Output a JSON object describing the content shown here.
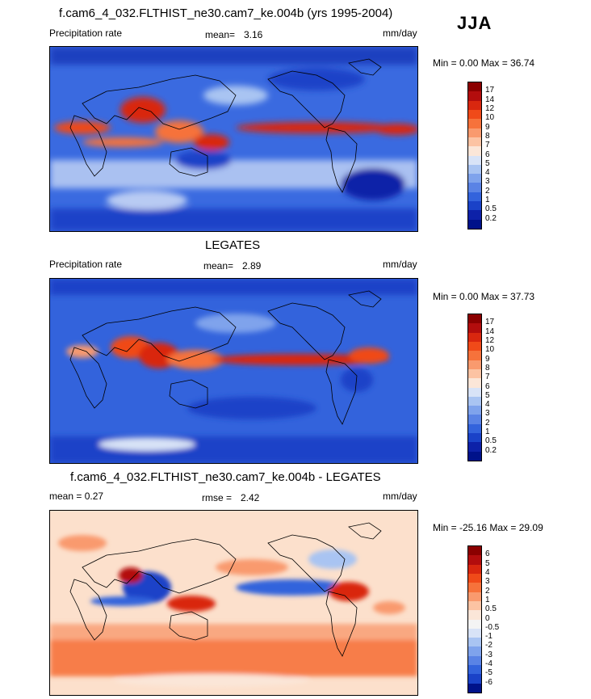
{
  "season": "JJA",
  "panels": [
    {
      "title": "f.cam6_4_032.FLTHIST_ne30.cam7_ke.004b (yrs 1995-2004)",
      "left_label": "Precipitation rate",
      "mean_label": "mean=",
      "mean_value": "3.16",
      "units": "mm/day",
      "minmax": "Min =   0.00 Max =  36.74",
      "levels": [
        "17",
        "14",
        "12",
        "10",
        "9",
        "8",
        "7",
        "6",
        "5",
        "4",
        "3",
        "2",
        "1",
        "0.5",
        "0.2"
      ],
      "colors": [
        "#8b0000",
        "#b30d0d",
        "#d9270f",
        "#f04a19",
        "#f6723b",
        "#f99a6e",
        "#fcc3a3",
        "#fbe6d8",
        "#d8e3f7",
        "#a9c4f2",
        "#7fa3ec",
        "#5a83e5",
        "#3363dc",
        "#1a42c8",
        "#0d21a8",
        "#00128a"
      ]
    },
    {
      "title": "LEGATES",
      "left_label": "Precipitation rate",
      "mean_label": "mean=",
      "mean_value": "2.89",
      "units": "mm/day",
      "minmax": "Min =   0.00 Max =  37.73",
      "levels": [
        "17",
        "14",
        "12",
        "10",
        "9",
        "8",
        "7",
        "6",
        "5",
        "4",
        "3",
        "2",
        "1",
        "0.5",
        "0.2"
      ],
      "colors": [
        "#8b0000",
        "#b30d0d",
        "#d9270f",
        "#f04a19",
        "#f6723b",
        "#f99a6e",
        "#fcc3a3",
        "#fbe6d8",
        "#d8e3f7",
        "#a9c4f2",
        "#7fa3ec",
        "#5a83e5",
        "#3363dc",
        "#1a42c8",
        "#0d21a8",
        "#00128a"
      ]
    },
    {
      "title": "f.cam6_4_032.FLTHIST_ne30.cam7_ke.004b - LEGATES",
      "left_label": "mean =   0.27",
      "mean_label": "rmse =",
      "mean_value": "2.42",
      "units": "mm/day",
      "minmax": "Min = -25.16 Max =  29.09",
      "levels": [
        "6",
        "5",
        "4",
        "3",
        "2",
        "1",
        "0.5",
        "0",
        "-0.5",
        "-1",
        "-2",
        "-3",
        "-4",
        "-5",
        "-6"
      ],
      "colors": [
        "#8b0000",
        "#b30d0d",
        "#d9270f",
        "#f04a19",
        "#f6723b",
        "#f99a6e",
        "#fcc3a3",
        "#fbe6d8",
        "#f4f4f4",
        "#d8e3f7",
        "#a9c4f2",
        "#7fa3ec",
        "#5a83e5",
        "#3363dc",
        "#1a42c8",
        "#00128a"
      ]
    }
  ]
}
